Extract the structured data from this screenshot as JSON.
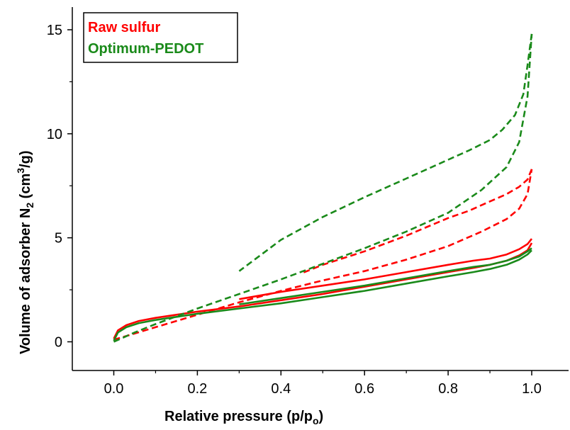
{
  "chart_data": {
    "type": "line",
    "xlabel_main": "Relative pressure (p/p",
    "xlabel_sub": "o",
    "xlabel_end": ")",
    "ylabel_part1": "Volume of adsorber N",
    "ylabel_sub": "2",
    "ylabel_part2": " (cm",
    "ylabel_sup": "3",
    "ylabel_part3": "/g)",
    "xlim": [
      -0.1,
      1.08
    ],
    "ylim": [
      -1.4,
      16.0
    ],
    "xticks": [
      0.0,
      0.2,
      0.4,
      0.6,
      0.8,
      1.0
    ],
    "xtick_labels": [
      "0.0",
      "0.2",
      "0.4",
      "0.6",
      "0.8",
      "1.0"
    ],
    "yticks": [
      0,
      5,
      10,
      15
    ],
    "ytick_labels": [
      "0",
      "5",
      "10",
      "15"
    ],
    "legend_position": "top-left",
    "series": [
      {
        "name": "Raw sulfur",
        "color": "#ff0000",
        "style": "solid",
        "x": [
          0.0,
          0.01,
          0.03,
          0.06,
          0.1,
          0.15,
          0.2,
          0.3,
          0.4,
          0.5,
          0.6,
          0.7,
          0.8,
          0.86,
          0.9,
          0.94,
          0.97,
          0.99,
          1.0
        ],
        "y": [
          0.15,
          0.55,
          0.8,
          1.0,
          1.15,
          1.3,
          1.45,
          1.7,
          2.0,
          2.3,
          2.65,
          3.0,
          3.35,
          3.55,
          3.7,
          3.9,
          4.15,
          4.4,
          4.75
        ]
      },
      {
        "name": "Raw sulfur",
        "color": "#ff0000",
        "style": "solid",
        "x": [
          1.0,
          0.99,
          0.97,
          0.94,
          0.9,
          0.86,
          0.8,
          0.7,
          0.6,
          0.5,
          0.4,
          0.3
        ],
        "y": [
          4.95,
          4.7,
          4.45,
          4.2,
          4.0,
          3.9,
          3.7,
          3.35,
          3.0,
          2.7,
          2.4,
          2.05
        ]
      },
      {
        "name": "Raw sulfur",
        "color": "#ff0000",
        "style": "dashed",
        "x": [
          0.0,
          0.05,
          0.1,
          0.2,
          0.3,
          0.4,
          0.5,
          0.6,
          0.7,
          0.8,
          0.88,
          0.94,
          0.97,
          0.99,
          1.0
        ],
        "y": [
          0.1,
          0.4,
          0.7,
          1.3,
          1.9,
          2.45,
          2.95,
          3.4,
          3.95,
          4.6,
          5.3,
          5.9,
          6.4,
          7.1,
          8.3
        ]
      },
      {
        "name": "Raw sulfur",
        "color": "#ff0000",
        "style": "dashed",
        "x": [
          1.0,
          0.99,
          0.97,
          0.94,
          0.9,
          0.85,
          0.8,
          0.7,
          0.6,
          0.5,
          0.45
        ],
        "y": [
          8.3,
          7.8,
          7.45,
          7.1,
          6.75,
          6.3,
          5.95,
          5.1,
          4.35,
          3.7,
          3.3
        ]
      },
      {
        "name": "Optimum-PEDOT",
        "color": "#1a8a1a",
        "style": "solid",
        "x": [
          0.0,
          0.01,
          0.03,
          0.06,
          0.1,
          0.15,
          0.2,
          0.3,
          0.4,
          0.5,
          0.6,
          0.7,
          0.8,
          0.86,
          0.9,
          0.94,
          0.97,
          0.99,
          1.0
        ],
        "y": [
          0.05,
          0.45,
          0.7,
          0.9,
          1.05,
          1.2,
          1.35,
          1.6,
          1.85,
          2.15,
          2.45,
          2.8,
          3.15,
          3.35,
          3.5,
          3.7,
          3.95,
          4.2,
          4.4
        ]
      },
      {
        "name": "Optimum-PEDOT",
        "color": "#1a8a1a",
        "style": "solid",
        "x": [
          1.0,
          0.99,
          0.97,
          0.94,
          0.9,
          0.86,
          0.8,
          0.7,
          0.6,
          0.5,
          0.4,
          0.3
        ],
        "y": [
          4.5,
          4.35,
          4.1,
          3.9,
          3.7,
          3.6,
          3.4,
          3.05,
          2.7,
          2.4,
          2.1,
          1.8
        ]
      },
      {
        "name": "Optimum-PEDOT",
        "color": "#1a8a1a",
        "style": "dashed",
        "x": [
          0.0,
          0.05,
          0.1,
          0.2,
          0.3,
          0.4,
          0.5,
          0.6,
          0.7,
          0.8,
          0.88,
          0.94,
          0.97,
          0.99,
          1.0
        ],
        "y": [
          0.0,
          0.45,
          0.85,
          1.6,
          2.3,
          3.0,
          3.75,
          4.5,
          5.3,
          6.2,
          7.3,
          8.4,
          9.6,
          11.8,
          14.8
        ]
      },
      {
        "name": "Optimum-PEDOT",
        "color": "#1a8a1a",
        "style": "dashed",
        "x": [
          1.0,
          0.99,
          0.98,
          0.96,
          0.93,
          0.9,
          0.85,
          0.8,
          0.7,
          0.6,
          0.5,
          0.4,
          0.3
        ],
        "y": [
          14.8,
          13.3,
          11.9,
          10.9,
          10.2,
          9.7,
          9.2,
          8.75,
          7.85,
          6.95,
          6.0,
          4.9,
          3.4
        ]
      }
    ]
  },
  "legend": {
    "items": [
      {
        "label": "Raw sulfur",
        "color": "#ff0000"
      },
      {
        "label": "Optimum-PEDOT",
        "color": "#1a8a1a"
      }
    ]
  }
}
